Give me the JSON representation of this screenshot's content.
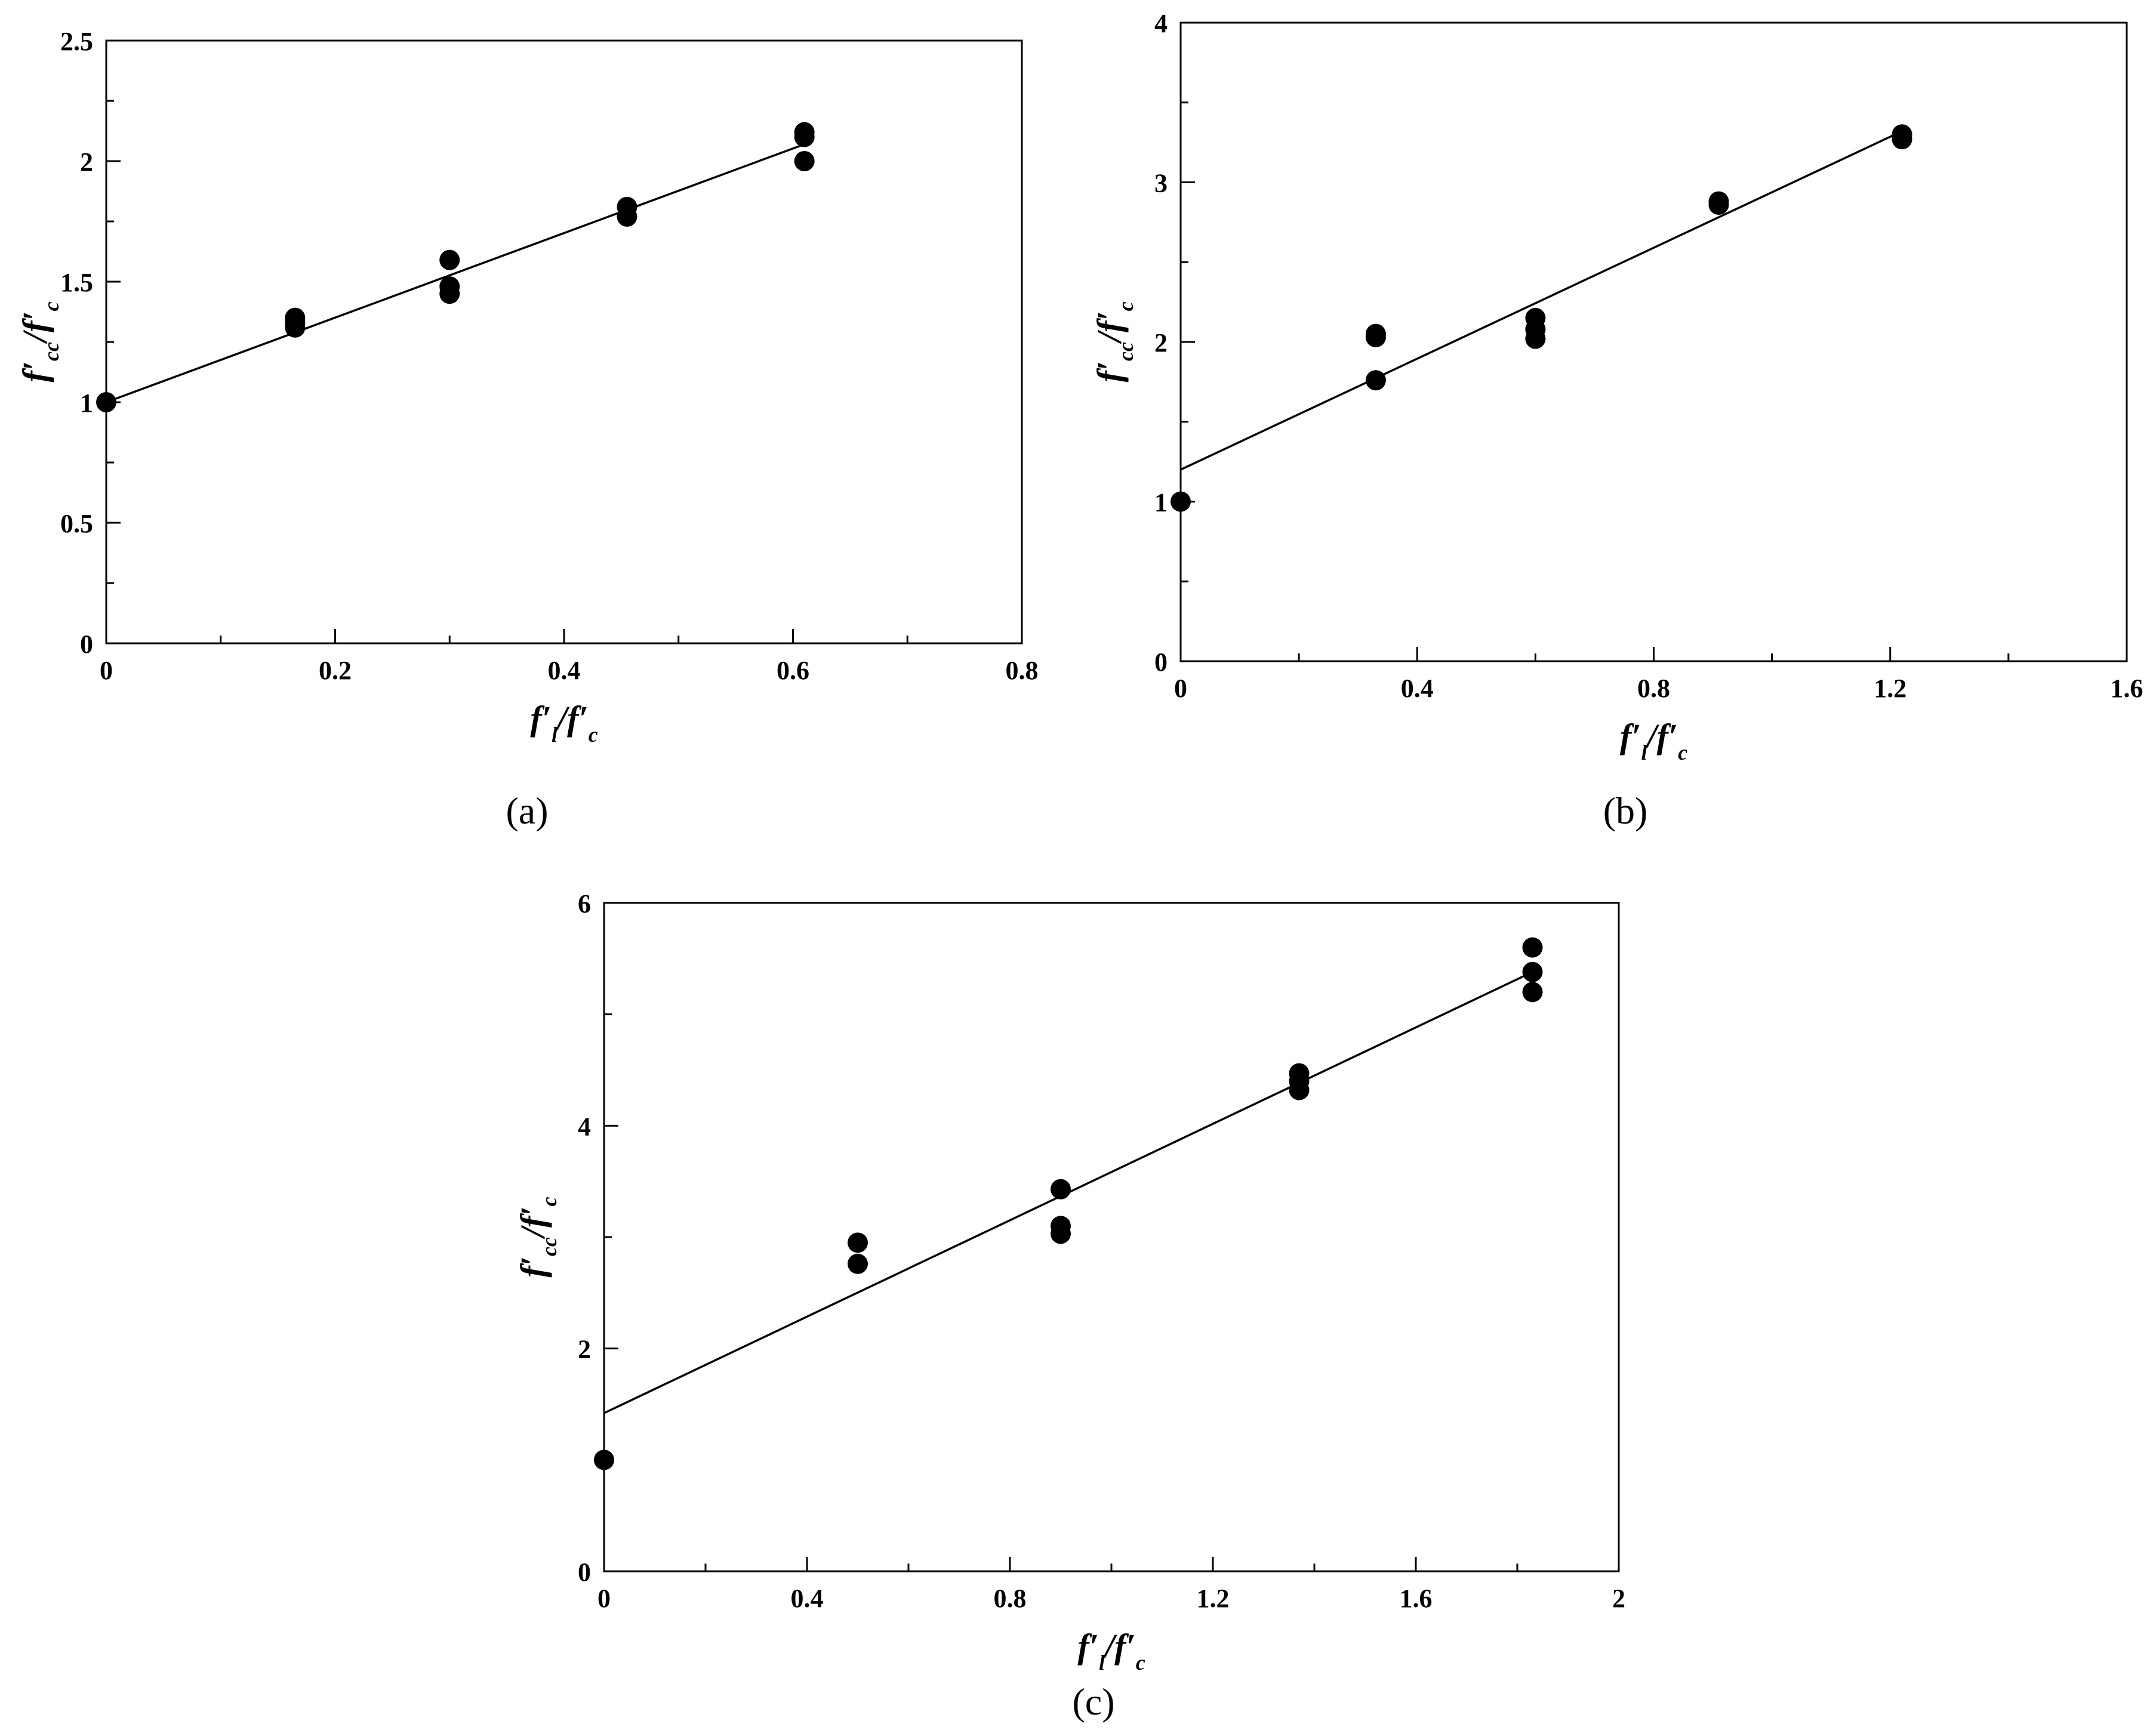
{
  "chart_data": [
    {
      "type": "scatter",
      "panel_label": "(a)",
      "xlabel": {
        "main1": "f′",
        "sub1": "l",
        "sep": "/",
        "main2": "f′",
        "sub2": "c"
      },
      "ylabel": {
        "main1": "f′",
        "sub1": "cc",
        "sep": "/",
        "main2": "f′",
        "sub2": "c"
      },
      "xlim": [
        0,
        0.8
      ],
      "ylim": [
        0,
        2.5
      ],
      "xticks": [
        0,
        0.2,
        0.4,
        0.6,
        0.8
      ],
      "xtick_labels": [
        "0",
        "0.2",
        "0.4",
        "0.6",
        "0.8"
      ],
      "xminor": [
        0.1,
        0.3,
        0.5,
        0.7
      ],
      "yticks": [
        0,
        0.5,
        1,
        1.5,
        2,
        2.5
      ],
      "ytick_labels": [
        "0",
        "0.5",
        "1",
        "1.5",
        "2",
        "2.5"
      ],
      "yminor": [
        0.25,
        0.75,
        1.25,
        1.75,
        2.25
      ],
      "points": [
        [
          0,
          1.0
        ],
        [
          0.165,
          1.35
        ],
        [
          0.165,
          1.33
        ],
        [
          0.165,
          1.31
        ],
        [
          0.3,
          1.59
        ],
        [
          0.3,
          1.48
        ],
        [
          0.3,
          1.45
        ],
        [
          0.455,
          1.81
        ],
        [
          0.455,
          1.77
        ],
        [
          0.61,
          2.12
        ],
        [
          0.61,
          2.1
        ],
        [
          0.61,
          2.0
        ]
      ],
      "fit": [
        [
          0,
          1.0
        ],
        [
          0.61,
          2.07
        ]
      ]
    },
    {
      "type": "scatter",
      "panel_label": "(b)",
      "xlabel": {
        "main1": "f′",
        "sub1": "l",
        "sep": "/",
        "main2": "f′",
        "sub2": "c"
      },
      "ylabel": {
        "main1": "f′",
        "sub1": "cc",
        "sep": "/",
        "main2": "f′",
        "sub2": "c"
      },
      "xlim": [
        0,
        1.6
      ],
      "ylim": [
        0,
        4
      ],
      "xticks": [
        0,
        0.4,
        0.8,
        1.2,
        1.6
      ],
      "xtick_labels": [
        "0",
        "0.4",
        "0.8",
        "1.2",
        "1.6"
      ],
      "xminor": [
        0.2,
        0.6,
        1.0,
        1.4
      ],
      "yticks": [
        0,
        1,
        2,
        3,
        4
      ],
      "ytick_labels": [
        "0",
        "1",
        "2",
        "3",
        "4"
      ],
      "yminor": [
        0.5,
        1.5,
        2.5,
        3.5
      ],
      "points": [
        [
          0,
          1.0
        ],
        [
          0.33,
          2.05
        ],
        [
          0.33,
          2.03
        ],
        [
          0.33,
          1.76
        ],
        [
          0.6,
          2.15
        ],
        [
          0.6,
          2.08
        ],
        [
          0.6,
          2.02
        ],
        [
          0.91,
          2.88
        ],
        [
          0.91,
          2.86
        ],
        [
          1.22,
          3.3
        ],
        [
          1.22,
          3.27
        ]
      ],
      "fit": [
        [
          0,
          1.2
        ],
        [
          1.22,
          3.32
        ]
      ]
    },
    {
      "type": "scatter",
      "panel_label": "(c)",
      "xlabel": {
        "main1": "f′",
        "sub1": "l",
        "sep": "/",
        "main2": "f′",
        "sub2": "c"
      },
      "ylabel": {
        "main1": "f′",
        "sub1": "cc",
        "sep": "/",
        "main2": "f′",
        "sub2": "c"
      },
      "xlim": [
        0,
        2
      ],
      "ylim": [
        0,
        6
      ],
      "xticks": [
        0,
        0.4,
        0.8,
        1.2,
        1.6,
        2
      ],
      "xtick_labels": [
        "0",
        "0.4",
        "0.8",
        "1.2",
        "1.6",
        "2"
      ],
      "xminor": [
        0.2,
        0.6,
        1.0,
        1.4,
        1.8
      ],
      "yticks": [
        0,
        2,
        4,
        6
      ],
      "ytick_labels": [
        "0",
        "2",
        "4",
        "6"
      ],
      "yminor": [
        1,
        3,
        5
      ],
      "points": [
        [
          0,
          1.0
        ],
        [
          0.5,
          2.95
        ],
        [
          0.5,
          2.76
        ],
        [
          0.9,
          3.43
        ],
        [
          0.9,
          3.1
        ],
        [
          0.9,
          3.03
        ],
        [
          1.37,
          4.47
        ],
        [
          1.37,
          4.4
        ],
        [
          1.37,
          4.32
        ],
        [
          1.83,
          5.6
        ],
        [
          1.83,
          5.38
        ],
        [
          1.83,
          5.2
        ]
      ],
      "fit": [
        [
          0,
          1.42
        ],
        [
          1.83,
          5.38
        ]
      ]
    }
  ]
}
